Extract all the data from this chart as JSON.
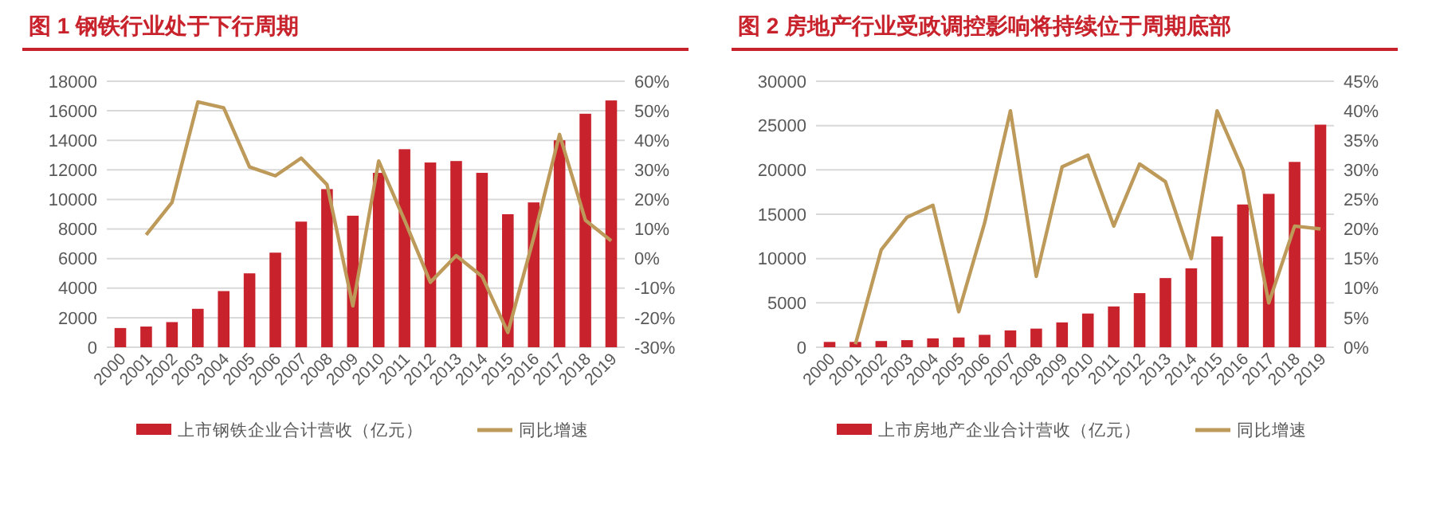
{
  "chart_data": [
    {
      "type": "bar",
      "title": "图 1   钢铁行业处于下行周期",
      "categories": [
        "2000",
        "2001",
        "2002",
        "2003",
        "2004",
        "2005",
        "2006",
        "2007",
        "2008",
        "2009",
        "2010",
        "2011",
        "2012",
        "2013",
        "2014",
        "2015",
        "2016",
        "2017",
        "2018",
        "2019"
      ],
      "series": [
        {
          "name": "上市钢铁企业合计营收（亿元）",
          "color": "#c8232c",
          "values": [
            1300,
            1400,
            1700,
            2600,
            3800,
            5000,
            6400,
            8500,
            10700,
            8900,
            11800,
            13400,
            12500,
            12600,
            11800,
            9000,
            9800,
            14000,
            15800,
            16700
          ]
        },
        {
          "name": "同比增速",
          "type": "line",
          "axis": "y2",
          "color": "#bd9a5a",
          "values": [
            null,
            8,
            19,
            53,
            51,
            31,
            28,
            34,
            25,
            -16,
            33,
            13,
            -8,
            1,
            -6,
            -25,
            7,
            42,
            13,
            6
          ]
        }
      ],
      "ylim": [
        0,
        18000
      ],
      "yticks": [
        0,
        2000,
        4000,
        6000,
        8000,
        10000,
        12000,
        14000,
        16000,
        18000
      ],
      "y2lim": [
        -30,
        60
      ],
      "y2ticks": [
        {
          "value": -30,
          "label": "-30%"
        },
        {
          "value": -20,
          "label": "-20%"
        },
        {
          "value": -10,
          "label": "-10%"
        },
        {
          "value": 0,
          "label": "0%"
        },
        {
          "value": 10,
          "label": "10%"
        },
        {
          "value": 20,
          "label": "20%"
        },
        {
          "value": 30,
          "label": "30%"
        },
        {
          "value": 40,
          "label": "40%"
        },
        {
          "value": 50,
          "label": "50%"
        },
        {
          "value": 60,
          "label": "60%"
        }
      ],
      "grid": "y",
      "legend": "bottom",
      "marker": "none"
    },
    {
      "type": "bar",
      "title": "图 2   房地产行业受政调控影响将持续位于周期底部",
      "categories": [
        "2000",
        "2001",
        "2002",
        "2003",
        "2004",
        "2005",
        "2006",
        "2007",
        "2008",
        "2009",
        "2010",
        "2011",
        "2012",
        "2013",
        "2014",
        "2015",
        "2016",
        "2017",
        "2018",
        "2019"
      ],
      "series": [
        {
          "name": "上市房地产企业合计营收（亿元）",
          "color": "#c8232c",
          "values": [
            600,
            600,
            700,
            800,
            1000,
            1100,
            1400,
            1900,
            2100,
            2800,
            3800,
            4600,
            6100,
            7800,
            8900,
            12500,
            16100,
            17300,
            20900,
            25100
          ]
        },
        {
          "name": "同比增速",
          "type": "line",
          "axis": "y2",
          "color": "#bd9a5a",
          "values": [
            null,
            0.5,
            16.5,
            22,
            24,
            6,
            21,
            40,
            12,
            30.5,
            32.5,
            20.5,
            31,
            28,
            15,
            40,
            30,
            7.5,
            20.5,
            20
          ]
        }
      ],
      "ylim": [
        0,
        30000
      ],
      "yticks": [
        0,
        5000,
        10000,
        15000,
        20000,
        25000,
        30000
      ],
      "y2lim": [
        0,
        45
      ],
      "y2ticks": [
        {
          "value": 0,
          "label": "0%"
        },
        {
          "value": 5,
          "label": "5%"
        },
        {
          "value": 10,
          "label": "10%"
        },
        {
          "value": 15,
          "label": "15%"
        },
        {
          "value": 20,
          "label": "20%"
        },
        {
          "value": 25,
          "label": "25%"
        },
        {
          "value": 30,
          "label": "30%"
        },
        {
          "value": 35,
          "label": "35%"
        },
        {
          "value": 40,
          "label": "40%"
        },
        {
          "value": 45,
          "label": "45%"
        }
      ],
      "grid": "y",
      "legend": "bottom",
      "marker": "none"
    }
  ]
}
